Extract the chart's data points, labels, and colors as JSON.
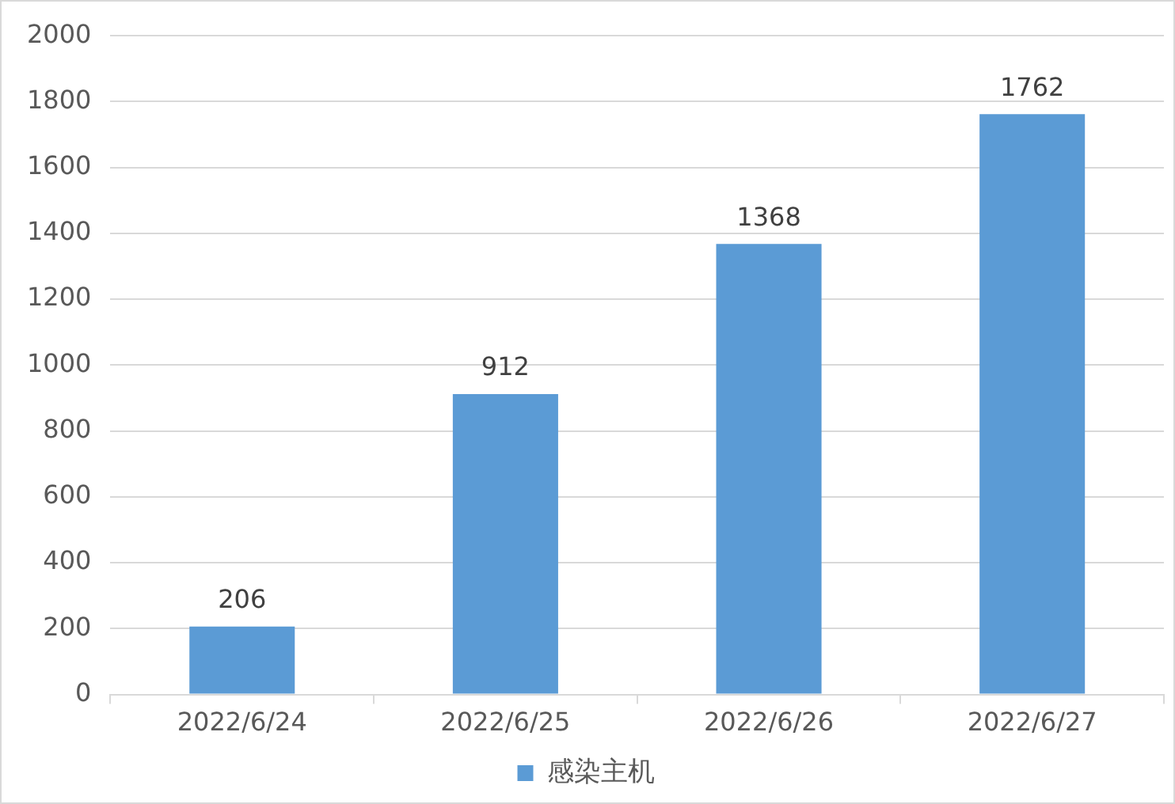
{
  "chart_data": {
    "type": "bar",
    "categories": [
      "2022/6/24",
      "2022/6/25",
      "2022/6/26",
      "2022/6/27"
    ],
    "series": [
      {
        "name": "感染主机",
        "color": "#5b9bd5",
        "values": [
          206,
          912,
          1368,
          1762
        ]
      }
    ],
    "ylim": [
      0,
      2000
    ],
    "yticks": [
      0,
      200,
      400,
      600,
      800,
      1000,
      1200,
      1400,
      1600,
      1800,
      2000
    ],
    "grid": "y",
    "legend": "bottom",
    "data_labels": true
  }
}
